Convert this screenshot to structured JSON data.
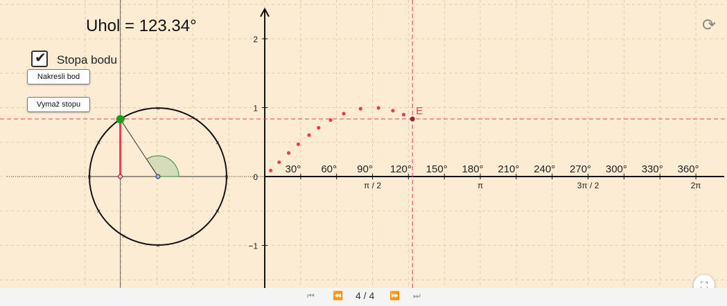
{
  "angle_display": "Uhol = 123.34°",
  "trace_checkbox": {
    "label": "Stopa bodu",
    "checked": true
  },
  "buttons": {
    "draw_point": "Nakresli bod",
    "clear_trace": "Vymaž stopu"
  },
  "graph": {
    "y_ticks": [
      "2",
      "1",
      "0",
      "−1"
    ],
    "degree_labels": [
      "30°",
      "60°",
      "90°",
      "120°",
      "150°",
      "180°",
      "210°",
      "240°",
      "270°",
      "300°",
      "330°",
      "360°"
    ],
    "radian_labels": [
      "π / 2",
      "π",
      "3π / 2",
      "2π"
    ],
    "point_label": "E",
    "angle_degrees": 123.34,
    "trace_points_deg": [
      5,
      12,
      20,
      28,
      37,
      45,
      55,
      66,
      80,
      95,
      107,
      116,
      123.34
    ]
  },
  "colors": {
    "background": "#fdecd4",
    "trace": "#f2375d",
    "grid": "#e7c9a6",
    "point": "#1b9e1b"
  },
  "footer": {
    "page_indicator": "4 / 4",
    "icons": [
      "first-page-icon",
      "previous-page-icon",
      "next-page-icon",
      "last-page-icon"
    ]
  },
  "icons": {
    "reset": "reset-icon",
    "fullscreen": "fullscreen-icon"
  }
}
